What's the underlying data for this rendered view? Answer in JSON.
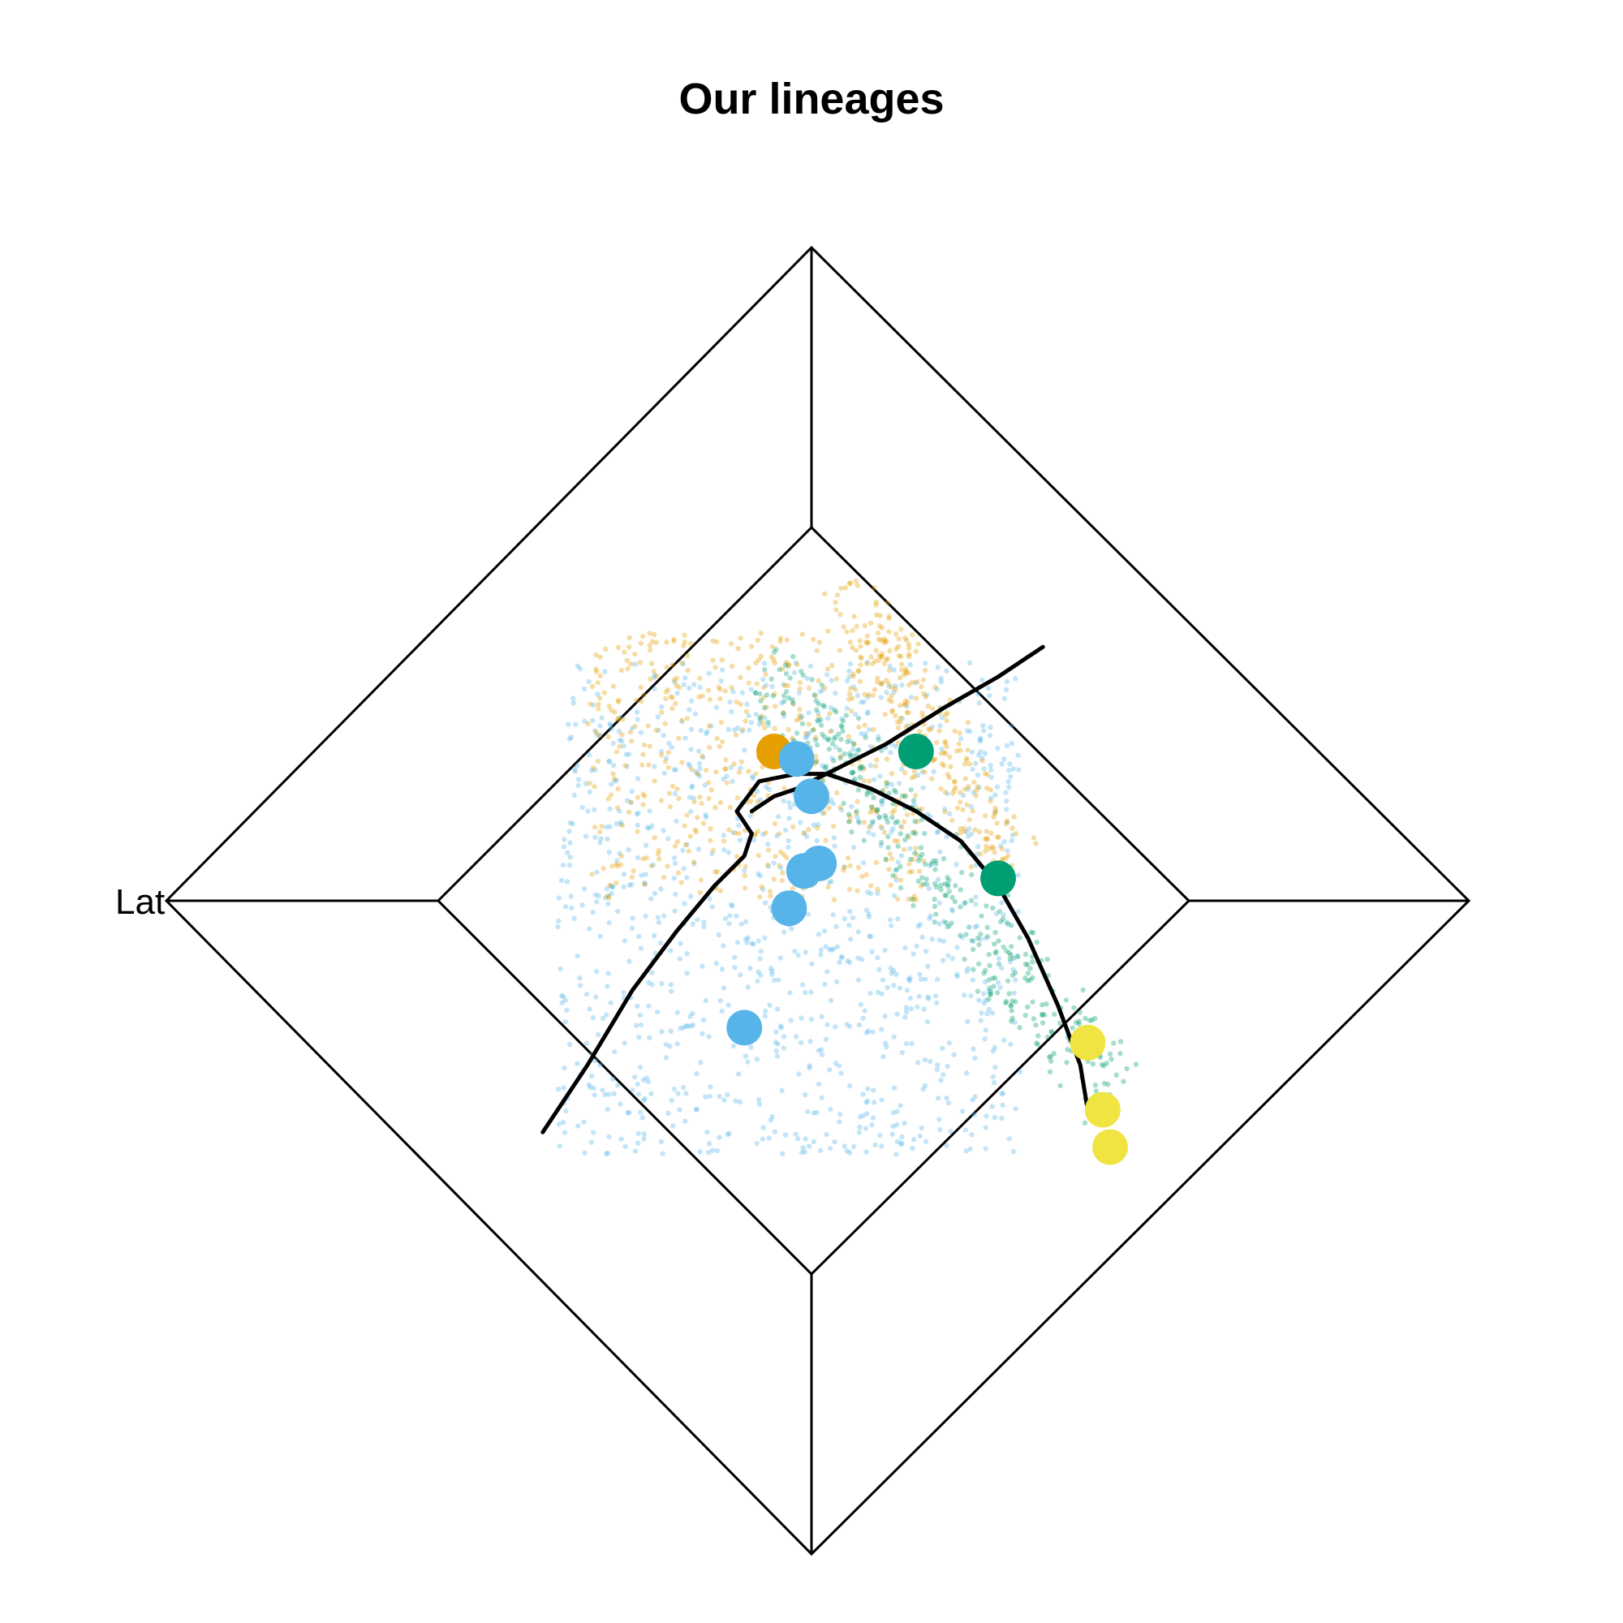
{
  "chart_data": {
    "type": "scatter",
    "title": "Our lineages",
    "axis_labels": [
      "Lat"
    ],
    "colors": {
      "orange": "#E69F00",
      "blue": "#56B4E9",
      "green": "#009E73",
      "yellow": "#F0E442"
    },
    "centroids": [
      {
        "color": "orange",
        "x": -0.05,
        "y": 0.2
      },
      {
        "color": "blue",
        "x": -0.02,
        "y": 0.19
      },
      {
        "color": "blue",
        "x": 0.0,
        "y": 0.14
      },
      {
        "color": "blue",
        "x": 0.01,
        "y": 0.05
      },
      {
        "color": "blue",
        "x": -0.01,
        "y": 0.04
      },
      {
        "color": "blue",
        "x": -0.03,
        "y": -0.01
      },
      {
        "color": "blue",
        "x": -0.09,
        "y": -0.17
      },
      {
        "color": "green",
        "x": 0.14,
        "y": 0.2
      },
      {
        "color": "green",
        "x": 0.25,
        "y": 0.03
      },
      {
        "color": "yellow",
        "x": 0.37,
        "y": -0.19
      },
      {
        "color": "yellow",
        "x": 0.39,
        "y": -0.28
      },
      {
        "color": "yellow",
        "x": 0.4,
        "y": -0.33
      }
    ],
    "curves": [
      {
        "x": [
          -0.36,
          -0.3,
          -0.24,
          -0.18,
          -0.13,
          -0.09,
          -0.08,
          -0.1,
          -0.07,
          -0.02,
          0.02,
          0.08,
          0.14,
          0.2,
          0.25,
          0.29,
          0.33,
          0.36,
          0.37
        ],
        "y": [
          -0.31,
          -0.22,
          -0.12,
          -0.04,
          0.02,
          0.06,
          0.09,
          0.12,
          0.16,
          0.17,
          0.17,
          0.15,
          0.12,
          0.08,
          0.02,
          -0.05,
          -0.14,
          -0.22,
          -0.28
        ]
      },
      {
        "x": [
          -0.08,
          -0.05,
          -0.02,
          0.02,
          0.1,
          0.18,
          0.25,
          0.31
        ],
        "y": [
          0.12,
          0.14,
          0.15,
          0.17,
          0.21,
          0.26,
          0.3,
          0.34
        ]
      }
    ]
  }
}
